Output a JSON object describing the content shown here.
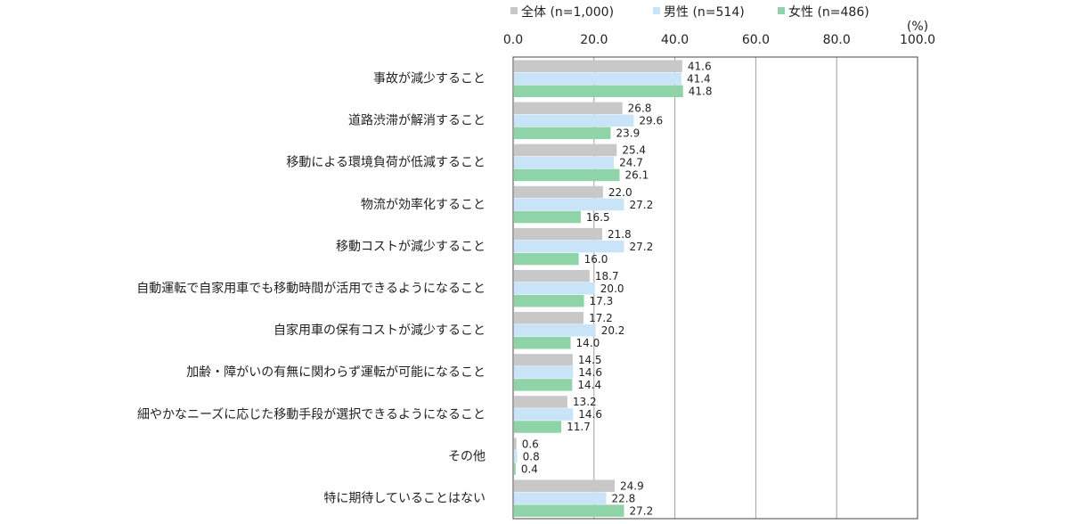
{
  "chart_data": {
    "type": "bar",
    "orientation": "horizontal",
    "unit": "(%)",
    "xlim": [
      0,
      100
    ],
    "ticks": [
      "0.0",
      "20.0",
      "40.0",
      "60.0",
      "80.0",
      "100.0"
    ],
    "grid": true,
    "legend_position": "top",
    "categories": [
      "事故が減少すること",
      "道路渋滞が解消すること",
      "移動による環境負荷が低減すること",
      "物流が効率化すること",
      "移動コストが減少すること",
      "自動運転で自家用車でも移動時間が活用できるようになること",
      "自家用車の保有コストが減少すること",
      "加齢・障がいの有無に関わらず運転が可能になること",
      "細やかなニーズに応じた移動手段が選択できるようになること",
      "その他",
      "特に期待していることはない"
    ],
    "series": [
      {
        "name": "全体 (n=1,000)",
        "color": "#c8c8c8",
        "values": [
          41.6,
          26.8,
          25.4,
          22.0,
          21.8,
          18.7,
          17.2,
          14.5,
          13.2,
          0.6,
          24.9
        ],
        "labels": [
          "41.6",
          "26.8",
          "25.4",
          "22.0",
          "21.8",
          "18.7",
          "17.2",
          "14.5",
          "13.2",
          "0.6",
          "24.9"
        ]
      },
      {
        "name": "男性 (n=514)",
        "color": "#c9e4f8",
        "values": [
          41.4,
          29.6,
          24.7,
          27.2,
          27.2,
          20.0,
          20.2,
          14.6,
          14.6,
          0.8,
          22.8
        ],
        "labels": [
          "41.4",
          "29.6",
          "24.7",
          "27.2",
          "27.2",
          "20.0",
          "20.2",
          "14.6",
          "14.6",
          "0.8",
          "22.8"
        ]
      },
      {
        "name": "女性 (n=486)",
        "color": "#8ed4a8",
        "values": [
          41.8,
          23.9,
          26.1,
          16.5,
          16.0,
          17.3,
          14.0,
          14.4,
          11.7,
          0.4,
          27.2
        ],
        "labels": [
          "41.8",
          "23.9",
          "26.1",
          "16.5",
          "16.0",
          "17.3",
          "14.0",
          "14.4",
          "11.7",
          "0.4",
          "27.2"
        ]
      }
    ]
  }
}
